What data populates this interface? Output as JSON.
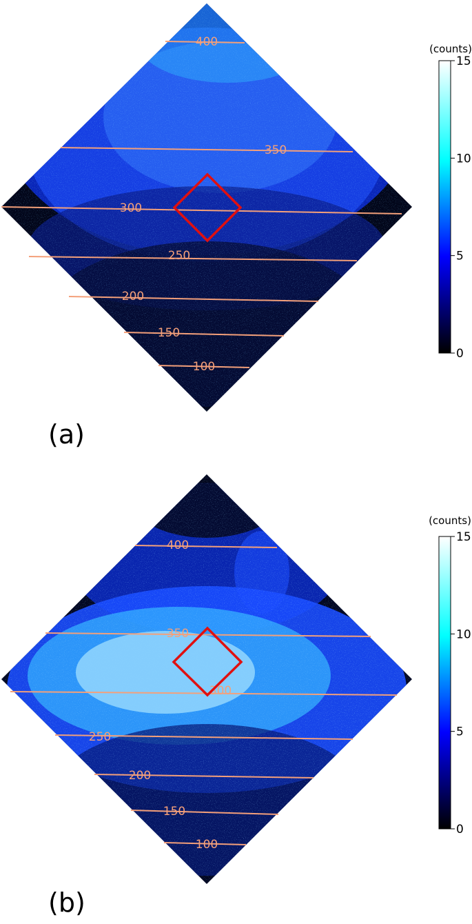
{
  "chart_data": [
    {
      "type": "heatmap",
      "panel_label": "(a)",
      "colorbar": {
        "label": "(counts)",
        "range": [
          0,
          15
        ],
        "ticks": [
          "15",
          "10",
          "5",
          "0"
        ],
        "colors": [
          "#000000",
          "#0000ff",
          "#00ffff",
          "#ffffff"
        ]
      },
      "contours": [
        {
          "label": "400"
        },
        {
          "label": "350"
        },
        {
          "label": "300"
        },
        {
          "label": "250"
        },
        {
          "label": "200"
        },
        {
          "label": "150"
        },
        {
          "label": "100"
        }
      ],
      "roi_color": "#e01010",
      "contour_color": "#f4a07a"
    },
    {
      "type": "heatmap",
      "panel_label": "(b)",
      "colorbar": {
        "label": "(counts)",
        "range": [
          0,
          15
        ],
        "ticks": [
          "15",
          "10",
          "5",
          "0"
        ],
        "colors": [
          "#000000",
          "#0000ff",
          "#00ffff",
          "#ffffff"
        ]
      },
      "contours": [
        {
          "label": "400"
        },
        {
          "label": "350"
        },
        {
          "label": "300"
        },
        {
          "label": "250"
        },
        {
          "label": "200"
        },
        {
          "label": "150"
        },
        {
          "label": "100"
        }
      ],
      "roi_color": "#e01010",
      "contour_color": "#f4a07a"
    }
  ]
}
